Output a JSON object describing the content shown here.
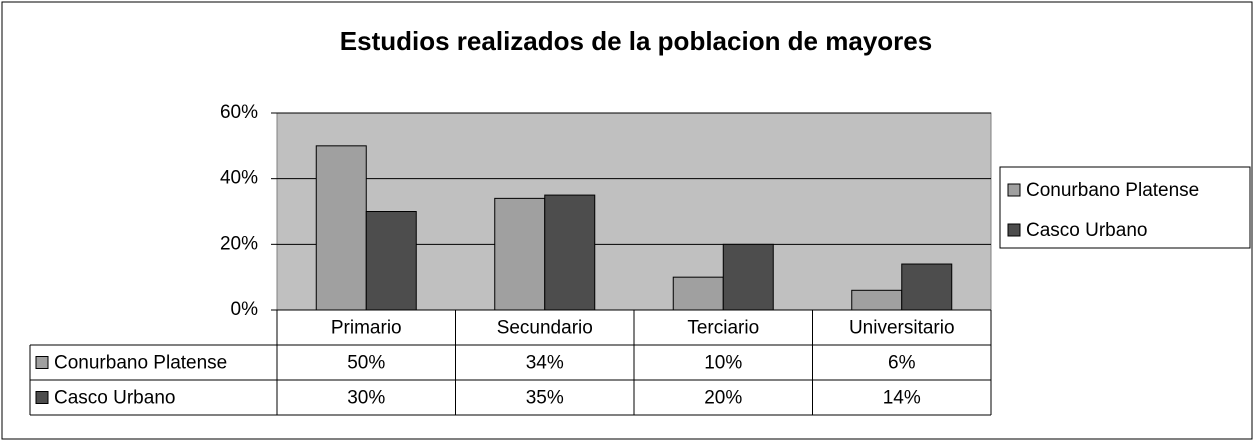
{
  "chart_data": {
    "type": "bar",
    "title": "Estudios realizados de la poblacion de mayores",
    "categories": [
      "Primario",
      "Secundario",
      "Terciario",
      "Universitario"
    ],
    "series": [
      {
        "name": "Conurbano Platense",
        "color": "#a0a0a0",
        "values": [
          50,
          34,
          10,
          6
        ],
        "value_labels": [
          "50%",
          "34%",
          "10%",
          "6%"
        ]
      },
      {
        "name": "Casco Urbano",
        "color": "#4d4d4d",
        "values": [
          30,
          35,
          20,
          14
        ],
        "value_labels": [
          "30%",
          "35%",
          "20%",
          "14%"
        ]
      }
    ],
    "ylim": [
      0,
      60
    ],
    "yticks": [
      {
        "value": 0,
        "label": "0%"
      },
      {
        "value": 20,
        "label": "20%"
      },
      {
        "value": 40,
        "label": "40%"
      },
      {
        "value": 60,
        "label": "60%"
      }
    ],
    "grid": true,
    "legend": "right",
    "plot_background": "#c0c0c0"
  }
}
